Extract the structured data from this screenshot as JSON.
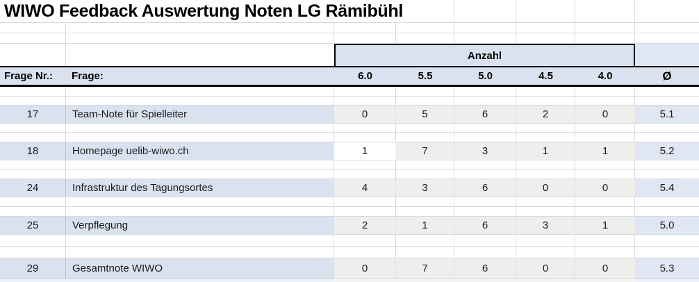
{
  "title": "WIWO Feedback Auswertung Noten LG Rämibühl",
  "colors": {
    "band-blue": "#dbe2ef",
    "header-blue": "#dbe2ef",
    "count-gray": "#eeeeec",
    "avg-blue": "#e0e6f2",
    "gridline": "#d4dae3",
    "border-black": "#000000",
    "text": "#1a1a1a"
  },
  "header": {
    "anzahl_label": "Anzahl",
    "frage_nr_label": "Frage Nr.:",
    "frage_label": "Frage:",
    "grade_columns": [
      "6.0",
      "5.5",
      "5.0",
      "4.5",
      "4.0"
    ],
    "avg_label": "Ø"
  },
  "rows": [
    {
      "nr": "17",
      "frage": "Team-Note für Spielleiter",
      "counts": [
        "0",
        "5",
        "6",
        "2",
        "0"
      ],
      "shades": [
        "gray",
        "gray",
        "gray",
        "gray",
        "gray"
      ],
      "avg": "5.1"
    },
    {
      "nr": "18",
      "frage": "Homepage uelib-wiwo.ch",
      "counts": [
        "1",
        "7",
        "3",
        "1",
        "1"
      ],
      "shades": [
        "white",
        "gray",
        "gray",
        "gray",
        "gray"
      ],
      "avg": "5.2"
    },
    {
      "nr": "24",
      "frage": "Infrastruktur des Tagungsortes",
      "counts": [
        "4",
        "3",
        "6",
        "0",
        "0"
      ],
      "shades": [
        "gray",
        "gray",
        "gray",
        "gray",
        "gray"
      ],
      "avg": "5.4"
    },
    {
      "nr": "25",
      "frage": "Verpflegung",
      "counts": [
        "2",
        "1",
        "6",
        "3",
        "1"
      ],
      "shades": [
        "gray",
        "gray",
        "gray",
        "gray",
        "gray"
      ],
      "avg": "5.0"
    },
    {
      "nr": "29",
      "frage": "Gesamtnote WIWO",
      "counts": [
        "0",
        "7",
        "6",
        "0",
        "0"
      ],
      "shades": [
        "gray",
        "gray",
        "gray",
        "gray",
        "gray"
      ],
      "avg": "5.3"
    }
  ]
}
